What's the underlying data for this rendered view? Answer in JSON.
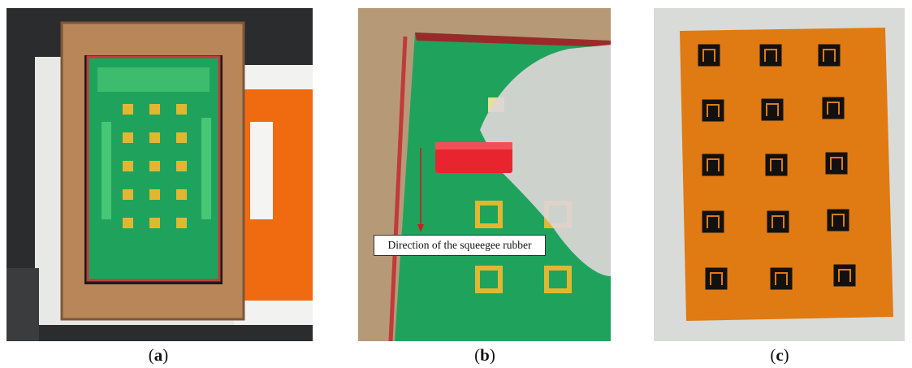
{
  "captions": {
    "a": "a",
    "b": "b",
    "c": "c"
  },
  "panel_b": {
    "annotation": "Direction of the squeegee rubber"
  },
  "colors": {
    "screen_green": "#1fa35c",
    "wood": "#b8875f",
    "kapton_orange": "#e07a12",
    "squeegee_red": "#e8252e"
  }
}
